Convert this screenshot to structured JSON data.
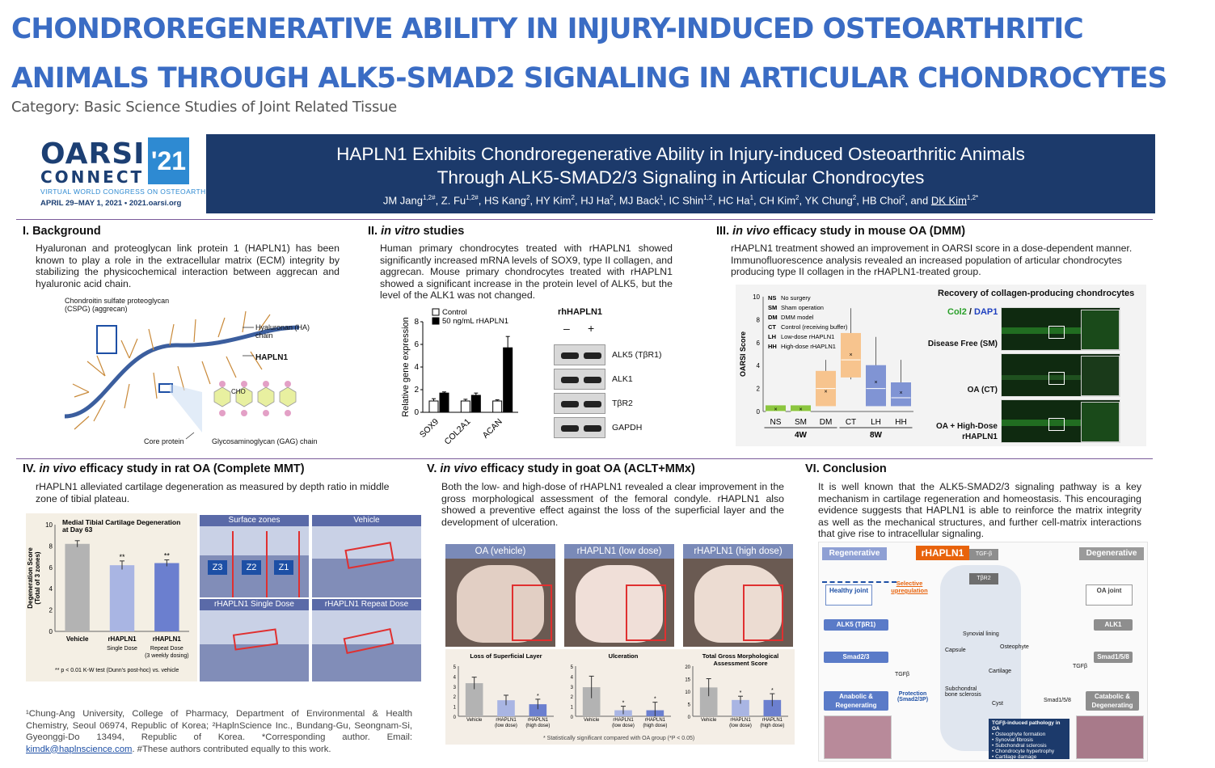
{
  "header": {
    "title_line1": "CHONDROREGENERATIVE ABILITY IN INJURY-INDUCED OSTEOARTHRITIC",
    "title_line2": "ANIMALS THROUGH ALK5-SMAD2 SIGNALING IN ARTICULAR CHONDROCYTES",
    "category": "Category: Basic Science Studies of Joint Related Tissue"
  },
  "logo": {
    "oarsi": "OARSI",
    "connect": "CONNECT",
    "year": "'21",
    "tagline": "VIRTUAL WORLD CONGRESS ON OSTEOARTHRITIS",
    "dates": "APRIL 29–MAY 1, 2021 • 2021.oarsi.org"
  },
  "banner": {
    "title_line1": "HAPLN1 Exhibits Chondroregenerative Ability in Injury-induced Osteoarthritic Animals",
    "title_line2": "Through ALK5-SMAD2/3 Signaling in Articular Chondrocytes",
    "authors": [
      {
        "name": "JM Jang",
        "sup": "1,2#"
      },
      {
        "name": "Z. Fu",
        "sup": "1,2#"
      },
      {
        "name": "HS Kang",
        "sup": "2"
      },
      {
        "name": "HY Kim",
        "sup": "2"
      },
      {
        "name": "HJ Ha",
        "sup": "2"
      },
      {
        "name": "MJ Back",
        "sup": "1"
      },
      {
        "name": "IC Shin",
        "sup": "1,2"
      },
      {
        "name": "HC Ha",
        "sup": "1"
      },
      {
        "name": "CH Kim",
        "sup": "2"
      },
      {
        "name": "YK Chung",
        "sup": "2"
      },
      {
        "name": "HB Choi",
        "sup": "2"
      },
      {
        "name": "DK Kim",
        "sup": "1,2*"
      }
    ]
  },
  "sections": {
    "s1": {
      "title": "I. Background",
      "text": "Hyaluronan and proteoglycan link protein 1 (HAPLN1) has been known to play a role in the extracellular matrix (ECM) integrity by stabilizing the physicochemical interaction between aggrecan and hyaluronic acid chain.",
      "fig_labels": {
        "cspg": "Chondroitin sulfate proteoglycan",
        "cspg2": "(CSPG) (aggrecan)",
        "ha": "Hyaluronan (HA)",
        "ha2": "chain",
        "hapln1": "HAPLN1",
        "core": "Core protein",
        "gag": "Glycosaminoglycan (GAG) chain",
        "cho": "CHO"
      }
    },
    "s2": {
      "title_pre": "II. ",
      "title_em": "in vitro",
      "title_post": " studies",
      "text": "Human primary chondrocytes treated with rHAPLN1 showed significantly increased mRNA levels of SOX9, type II collagen, and aggrecan. Mouse primary chondrocytes treated with rHAPLN1 showed a significant increase in the protein level of ALK5, but the level of the ALK1 was not changed.",
      "blot": {
        "header": "rhHAPLN1",
        "minus": "–",
        "plus": "+",
        "bands": [
          "ALK5 (TβR1)",
          "ALK1",
          "TβR2",
          "GAPDH"
        ]
      }
    },
    "s3": {
      "title_pre": "III. ",
      "title_em": "in vivo",
      "title_post": " efficacy study in mouse OA (DMM)",
      "text": "rHAPLN1 treatment showed an improvement in OARSI score in a dose-dependent manner. Immunofluorescence analysis revealed an increased population of articular chondrocytes producing type II collagen in the rHAPLN1-treated group.",
      "micro_title": "Recovery of collagen-producing chondrocytes",
      "col2": "Col2",
      "slash": " / ",
      "dap1": "DAP1",
      "rows": [
        "Disease Free (SM)",
        "OA (CT)",
        "OA + High-Dose"
      ],
      "row_last2": "rHAPLN1"
    },
    "s4": {
      "title_pre": "IV. ",
      "title_em": "in vivo",
      "title_post": " efficacy study in rat OA (Complete MMT)",
      "text": "rHAPLN1 alleviated cartilage degeneration as measured by depth ratio in middle zone of tibial plateau.",
      "panels": [
        "Surface zones",
        "Vehicle",
        "rHAPLN1 Single Dose",
        "rHAPLN1 Repeat Dose"
      ],
      "zones": [
        "Z3",
        "Z2",
        "Z1"
      ]
    },
    "s5": {
      "title_pre": "V. ",
      "title_em": "in vivo",
      "title_post": " efficacy study in goat OA (ACLT+MMx)",
      "text": "Both the low- and high-dose of rHAPLN1 revealed a clear improvement in the gross morphological assessment of the femoral condyle. rHAPLN1 also showed a preventive effect against the loss of the superficial layer and the development of ulceration.",
      "photos": [
        "OA (vehicle)",
        "rHAPLN1 (low dose)",
        "rHAPLN1 (high dose)"
      ],
      "note": "* Statistically significant compared with OA group (*P < 0.05)"
    },
    "s6": {
      "title": "VI. Conclusion",
      "text": "It is well known that the ALK5-SMAD2/3 signaling pathway is a key mechanism in cartilage regeneration and homeostasis. This encouraging evidence suggests that HAPLN1 is able to reinforce the matrix integrity as well as the mechanical structures, and further cell-matrix interactions that give rise to intracellular signaling.",
      "schematic": {
        "regen": "Regenerative",
        "degen": "Degenerative",
        "rhapln1": "rHAPLN1",
        "tgfb": "TGF-β",
        "tbr2": "TβR2",
        "healthy": "Healthy joint",
        "oa": "OA joint",
        "sel": "Selective upregulation",
        "alk5": "ALK5 (TβR1)",
        "alk1": "ALK1",
        "smad23": "Smad2/3",
        "smad158": "Smad1/5/8",
        "anabolic": "Anabolic & Regenerating",
        "catabolic": "Catabolic & Degenerating",
        "protection": "Protection (Smad2/3P)",
        "synovial": "Synovial lining",
        "capsule": "Capsule",
        "osteophyte": "Osteophyte",
        "cartilage": "Cartilage",
        "subchondral": "Subchondral bone sclerosis",
        "cyst": "Cyst",
        "smad158b": "Smad1/5/8",
        "tgfb_l": "TGFβ",
        "tgfb_r": "TGFβ",
        "path_title": "TGFβ-induced pathology in OA",
        "path_items": [
          "Osteophyte formation",
          "Synovial fibrosis",
          "Subchondral sclerosis",
          "Chondrocyte hypertrophy",
          "Cartilage damage"
        ]
      }
    }
  },
  "footnote": {
    "text": "¹Chung-Ang University, College of Pharmacy, Department of Environmental & Health Chemistry, Seoul 06974, Republic of Korea; ²HaplnScience Inc., Bundang-Gu, Seongnam-Si, Gyeonggi-Do 13494, Republic of Korea. *Corresponding author. Email:",
    "email": "kimdk@haplnscience.com",
    "tail": ". #These authors contributed equally to this work."
  },
  "chart_data": [
    {
      "type": "bar",
      "ylabel": "Relative gene expression",
      "categories": [
        "SOX9",
        "COL2A1",
        "ACAN"
      ],
      "ylim": [
        0,
        8
      ],
      "yticks": [
        0,
        2,
        4,
        6,
        8
      ],
      "series": [
        {
          "name": "Control",
          "values": [
            1.0,
            1.0,
            1.0
          ],
          "errors": [
            0.2,
            0.15,
            0.1
          ],
          "color": "#ffffff"
        },
        {
          "name": "50 ng/mL rHAPLN1",
          "values": [
            1.7,
            1.5,
            5.7
          ],
          "errors": [
            0.1,
            0.2,
            1.0
          ],
          "color": "#000000"
        }
      ]
    },
    {
      "type": "box",
      "ylabel": "OARSI Score",
      "categories": [
        "NS",
        "SM",
        "DM",
        "CT",
        "LH",
        "HH"
      ],
      "groups": [
        {
          "label": "4W",
          "span": [
            "NS",
            "DM"
          ]
        },
        {
          "label": "8W",
          "span": [
            "CT",
            "HH"
          ]
        }
      ],
      "ylim": [
        0,
        10
      ],
      "yticks": [
        0,
        2,
        4,
        6,
        8,
        10
      ],
      "legend": [
        {
          "code": "NS",
          "text": "No surgery"
        },
        {
          "code": "SM",
          "text": "Sham operation"
        },
        {
          "code": "DM",
          "text": "DMM model"
        },
        {
          "code": "CT",
          "text": "Control (receiving buffer)"
        },
        {
          "code": "LH",
          "text": "Low-dose rHAPLN1"
        },
        {
          "code": "HH",
          "text": "High-dose rHAPLN1"
        }
      ],
      "boxes": [
        {
          "cat": "NS",
          "min": 0,
          "q1": 0,
          "median": 0,
          "q3": 0.5,
          "max": 0.5,
          "mean": 0.25,
          "color": "#8cc63f"
        },
        {
          "cat": "SM",
          "min": 0,
          "q1": 0,
          "median": 0,
          "q3": 0.5,
          "max": 0.5,
          "mean": 0.25,
          "color": "#8cc63f"
        },
        {
          "cat": "DM",
          "min": 0.5,
          "q1": 0.5,
          "median": 2.0,
          "q3": 3.5,
          "max": 4.5,
          "mean": 1.8,
          "color": "#f7c48e"
        },
        {
          "cat": "CT",
          "min": 2.8,
          "q1": 3.0,
          "median": 4.5,
          "q3": 6.8,
          "max": 9.0,
          "mean": 5.0,
          "color": "#f7c48e"
        },
        {
          "cat": "LH",
          "min": 0.5,
          "q1": 0.5,
          "median": 2.0,
          "q3": 4.0,
          "max": 6.5,
          "mean": 2.6,
          "color": "#8094d4"
        },
        {
          "cat": "HH",
          "min": 0.5,
          "q1": 0.5,
          "median": 1.2,
          "q3": 2.5,
          "max": 4.5,
          "mean": 1.7,
          "color": "#8094d4"
        }
      ]
    },
    {
      "type": "bar",
      "title": "Medial Tibial Cartilage Degeneration at Day 63",
      "ylabel": "Degeneration Score (Total of 3 zones)",
      "categories": [
        "Vehicle",
        "rHAPLN1",
        "rHAPLN1"
      ],
      "sublabels": [
        "",
        "Single Dose",
        "Repeat Dose (3 weekly dosing)"
      ],
      "values": [
        8.2,
        6.2,
        6.4
      ],
      "errors": [
        0.3,
        0.4,
        0.3
      ],
      "marks": [
        "",
        "**",
        "**"
      ],
      "colors": [
        "#b3b3b3",
        "#a9b5e3",
        "#6b7fcf"
      ],
      "ylim": [
        0,
        10
      ],
      "yticks": [
        0,
        2,
        4,
        6,
        8,
        10
      ],
      "note": "** p < 0.01 K-W test (Dunn's post-hoc) vs. vehicle"
    },
    {
      "type": "bar",
      "title": "Loss of Superficial Layer",
      "categories": [
        "Vehicle",
        "rHAPLN1 (low dose)",
        "rHAPLN1 (high dose)"
      ],
      "values": [
        3.3,
        1.6,
        1.2
      ],
      "errors": [
        0.6,
        0.5,
        0.5
      ],
      "marks": [
        "",
        "",
        "*"
      ],
      "colors": [
        "#b3b3b3",
        "#a9b5e3",
        "#6b7fcf"
      ],
      "ylim": [
        0,
        5
      ],
      "yticks": [
        0,
        1,
        2,
        3,
        4,
        5
      ]
    },
    {
      "type": "bar",
      "title": "Ulceration",
      "categories": [
        "Vehicle",
        "rHAPLN1 (low dose)",
        "rHAPLN1 (high dose)"
      ],
      "values": [
        2.9,
        0.6,
        0.6
      ],
      "errors": [
        1.1,
        0.4,
        0.8
      ],
      "marks": [
        "",
        "*",
        "*"
      ],
      "colors": [
        "#b3b3b3",
        "#a9b5e3",
        "#6b7fcf"
      ],
      "ylim": [
        0,
        5
      ],
      "yticks": [
        0,
        1,
        2,
        3,
        4,
        5
      ]
    },
    {
      "type": "bar",
      "title": "Total Gross Morphological Assessment Score",
      "categories": [
        "Vehicle",
        "rHAPLN1 (low dose)",
        "rHAPLN1 (high dose)"
      ],
      "values": [
        11.5,
        6.5,
        6.5
      ],
      "errors": [
        3.5,
        1.5,
        2.5
      ],
      "marks": [
        "",
        "*",
        "*"
      ],
      "colors": [
        "#b3b3b3",
        "#a9b5e3",
        "#6b7fcf"
      ],
      "ylim": [
        0,
        20
      ],
      "yticks": [
        0,
        5,
        10,
        15,
        20
      ]
    }
  ],
  "colors": {
    "title_blue": "#3a6cc4",
    "banner_navy": "#1c3a6b",
    "divider_purple": "#7a5b9a"
  }
}
